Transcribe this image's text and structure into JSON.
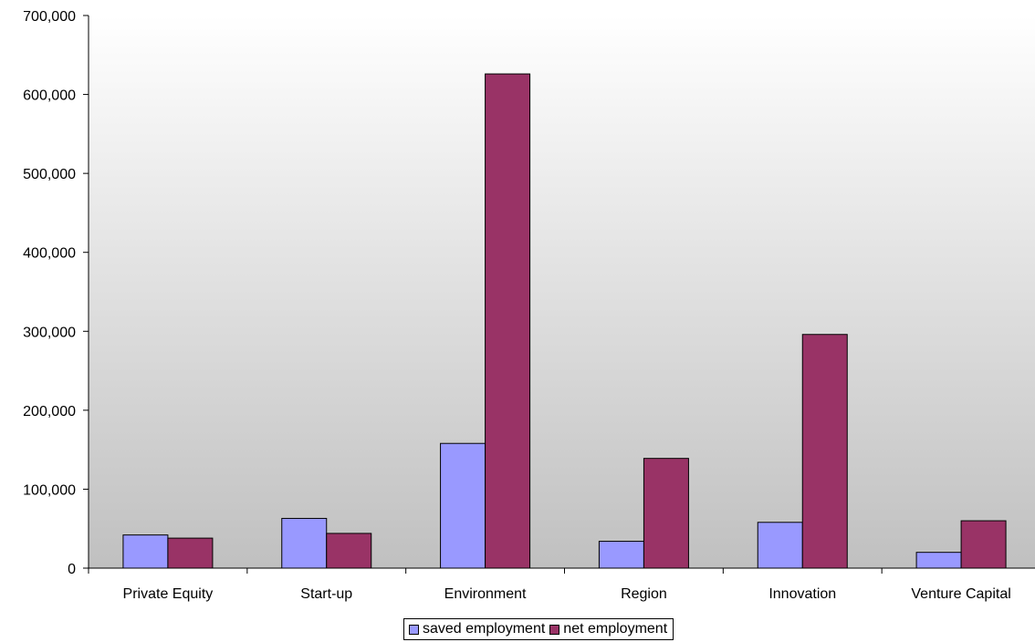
{
  "chart_data": {
    "type": "bar",
    "categories": [
      "Private Equity",
      "Start-up",
      "Environment",
      "Region",
      "Innovation",
      "Venture Capital"
    ],
    "series": [
      {
        "name": "saved employment",
        "color": "#9999ff",
        "values": [
          42000,
          63000,
          158000,
          34000,
          58000,
          20000
        ]
      },
      {
        "name": "net employment",
        "color": "#993366",
        "values": [
          38000,
          44000,
          626000,
          139000,
          296000,
          60000
        ]
      }
    ],
    "ylim": [
      0,
      700000
    ],
    "yticks": [
      "0",
      "100,000",
      "200,000",
      "300,000",
      "400,000",
      "500,000",
      "600,000",
      "700,000"
    ],
    "ytick_values": [
      0,
      100000,
      200000,
      300000,
      400000,
      500000,
      600000,
      700000
    ],
    "grid": false,
    "legend_position": "bottom-center",
    "background": "gradient white to grey"
  }
}
